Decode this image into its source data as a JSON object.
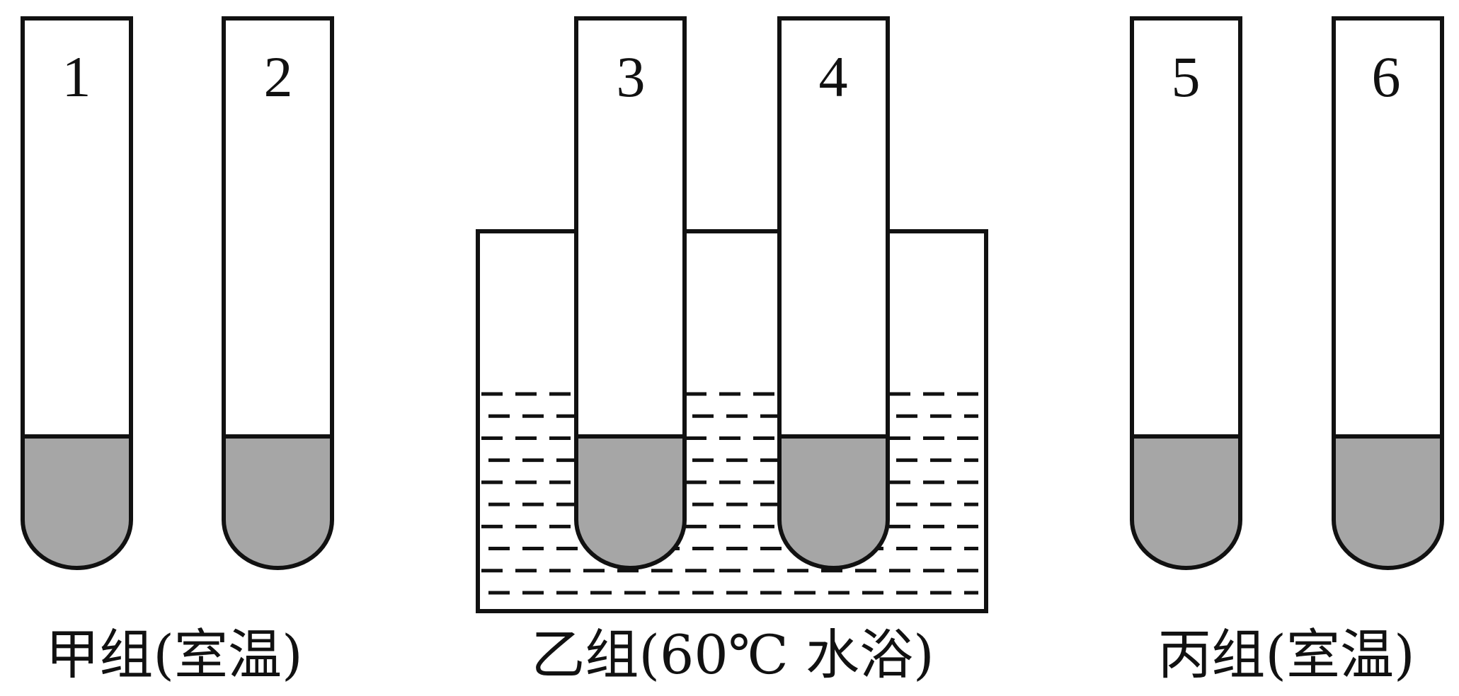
{
  "colors": {
    "outline": "#111111",
    "liquid": "#a6a6a6",
    "background": "#ffffff",
    "water_dash": "#111111"
  },
  "tubes": [
    {
      "label": "1",
      "group": "jia"
    },
    {
      "label": "2",
      "group": "jia"
    },
    {
      "label": "3",
      "group": "yi"
    },
    {
      "label": "4",
      "group": "yi"
    },
    {
      "label": "5",
      "group": "bing"
    },
    {
      "label": "6",
      "group": "bing"
    }
  ],
  "groups": {
    "jia": {
      "label": "甲组(室温)"
    },
    "yi": {
      "label": "乙组(60℃ 水浴)"
    },
    "bing": {
      "label": "丙组(室温)"
    }
  }
}
